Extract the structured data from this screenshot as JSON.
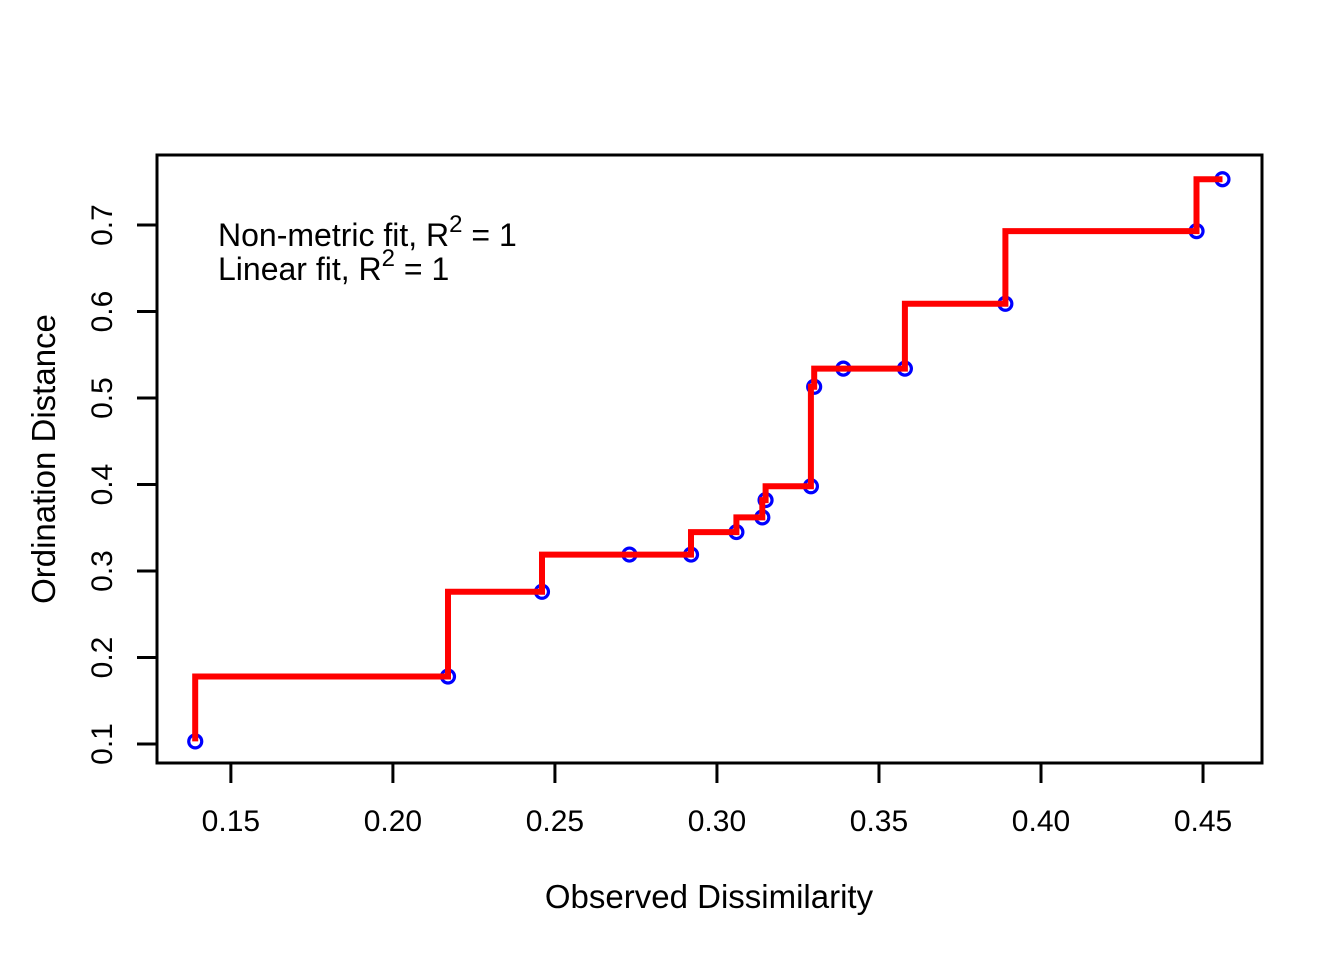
{
  "figure": {
    "background": "#FFFFFF",
    "annotation": {
      "line1_prefix": "Non-metric fit, R",
      "line1_sup": "2",
      "line1_suffix": " = 1",
      "line2_prefix": "Linear fit, R",
      "line2_sup": "2",
      "line2_suffix": " = 1"
    }
  },
  "chart_data": {
    "type": "scatter",
    "subtype": "shepard-stressplot-step",
    "title": "",
    "xlabel": "Observed Dissimilarity",
    "ylabel": "Ordination Distance",
    "annotations": [
      "Non-metric fit, R² = 1",
      "Linear fit, R² = 1"
    ],
    "xlim": [
      0.1272,
      0.4682
    ],
    "ylim": [
      0.078,
      0.781
    ],
    "grid": false,
    "legend": "none",
    "x_tick_values": [
      0.15,
      0.2,
      0.25,
      0.3,
      0.35,
      0.4,
      0.45
    ],
    "x_tick_labels": [
      "0.15",
      "0.20",
      "0.25",
      "0.30",
      "0.35",
      "0.40",
      "0.45"
    ],
    "y_tick_values": [
      0.1,
      0.2,
      0.3,
      0.4,
      0.5,
      0.6,
      0.7
    ],
    "y_tick_labels": [
      "0.1",
      "0.2",
      "0.3",
      "0.4",
      "0.5",
      "0.6",
      "0.7"
    ],
    "points": [
      {
        "x": 0.139,
        "y": 0.103
      },
      {
        "x": 0.217,
        "y": 0.178
      },
      {
        "x": 0.246,
        "y": 0.276
      },
      {
        "x": 0.273,
        "y": 0.319
      },
      {
        "x": 0.292,
        "y": 0.319
      },
      {
        "x": 0.306,
        "y": 0.345
      },
      {
        "x": 0.314,
        "y": 0.362
      },
      {
        "x": 0.315,
        "y": 0.382
      },
      {
        "x": 0.329,
        "y": 0.398
      },
      {
        "x": 0.33,
        "y": 0.513
      },
      {
        "x": 0.339,
        "y": 0.534
      },
      {
        "x": 0.358,
        "y": 0.534
      },
      {
        "x": 0.389,
        "y": 0.609
      },
      {
        "x": 0.448,
        "y": 0.693
      },
      {
        "x": 0.456,
        "y": 0.753
      }
    ],
    "step_line_through_points": true,
    "colors": {
      "step_line": "#FF0000",
      "point_stroke": "#0000FF",
      "axis": "#000000",
      "text": "#000000",
      "background": "#FFFFFF"
    }
  }
}
